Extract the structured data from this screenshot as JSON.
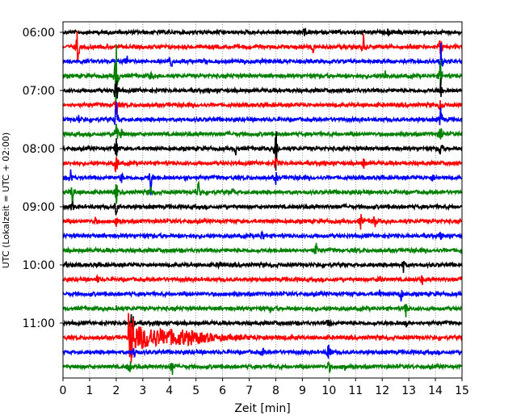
{
  "chart_data": {
    "type": "line",
    "title": "",
    "xlabel": "Zeit  [min]",
    "ylabel": "UTC (Lokalzeit = UTC + 02:00)",
    "xlim": [
      0,
      15
    ],
    "x_ticks": [
      "0",
      "1",
      "2",
      "3",
      "4",
      "5",
      "6",
      "7",
      "8",
      "9",
      "10",
      "11",
      "12",
      "13",
      "14",
      "15"
    ],
    "y_ticks": [
      "06:00",
      "07:00",
      "08:00",
      "09:00",
      "10:00",
      "11:00"
    ],
    "grid": "vertical dotted",
    "trace_interval_minutes": 15,
    "trace_colors": [
      "#000000",
      "#ff0000",
      "#0000ff",
      "#008000"
    ],
    "traces": [
      {
        "start": "06:00",
        "color": "#000000",
        "events": [
          {
            "t": 9.1,
            "amp": 5
          },
          {
            "t": 12.2,
            "amp": 4
          },
          {
            "t": 12.7,
            "amp": 3
          }
        ]
      },
      {
        "start": "06:15",
        "color": "#ff0000",
        "events": [
          {
            "t": 0.55,
            "amp": 32
          },
          {
            "t": 9.4,
            "amp": 9
          },
          {
            "t": 11.3,
            "amp": 16
          },
          {
            "t": 14.2,
            "amp": 22
          }
        ]
      },
      {
        "start": "06:30",
        "color": "#0000ff",
        "events": [
          {
            "t": 2.4,
            "amp": 8
          },
          {
            "t": 4.05,
            "amp": 16
          },
          {
            "t": 14.2,
            "amp": 30
          }
        ]
      },
      {
        "start": "06:45",
        "color": "#008000",
        "events": [
          {
            "t": 2.0,
            "amp": 62
          },
          {
            "t": 3.3,
            "amp": 5
          },
          {
            "t": 12.1,
            "amp": 10
          },
          {
            "t": 14.2,
            "amp": 22
          }
        ]
      },
      {
        "start": "07:00",
        "color": "#000000",
        "events": [
          {
            "t": 2.0,
            "amp": 30
          },
          {
            "t": 14.2,
            "amp": 18
          }
        ]
      },
      {
        "start": "07:15",
        "color": "#ff0000",
        "events": [
          {
            "t": 2.0,
            "amp": 26
          },
          {
            "t": 14.2,
            "amp": 16
          }
        ]
      },
      {
        "start": "07:30",
        "color": "#0000ff",
        "events": [
          {
            "t": 2.0,
            "amp": 28
          },
          {
            "t": 0.6,
            "amp": 5
          },
          {
            "t": 14.2,
            "amp": 18
          }
        ]
      },
      {
        "start": "07:45",
        "color": "#008000",
        "events": [
          {
            "t": 2.0,
            "amp": 26
          },
          {
            "t": 2.2,
            "amp": 8
          },
          {
            "t": 14.2,
            "amp": 18
          }
        ]
      },
      {
        "start": "08:00",
        "color": "#000000",
        "events": [
          {
            "t": 2.0,
            "amp": 22
          },
          {
            "t": 6.5,
            "amp": 7
          },
          {
            "t": 8.0,
            "amp": 36
          },
          {
            "t": 14.2,
            "amp": 16
          }
        ]
      },
      {
        "start": "08:15",
        "color": "#ff0000",
        "events": [
          {
            "t": 2.0,
            "amp": 22
          },
          {
            "t": 8.0,
            "amp": 14
          },
          {
            "t": 11.3,
            "amp": 8
          }
        ]
      },
      {
        "start": "08:30",
        "color": "#0000ff",
        "events": [
          {
            "t": 0.3,
            "amp": 14
          },
          {
            "t": 2.2,
            "amp": 8
          },
          {
            "t": 3.3,
            "amp": 24
          },
          {
            "t": 4.6,
            "amp": 5
          },
          {
            "t": 8.0,
            "amp": 8
          },
          {
            "t": 13.9,
            "amp": 5
          }
        ]
      },
      {
        "start": "08:45",
        "color": "#008000",
        "events": [
          {
            "t": 0.35,
            "amp": 18
          },
          {
            "t": 2.0,
            "amp": 18
          },
          {
            "t": 3.3,
            "amp": 8
          },
          {
            "t": 5.1,
            "amp": 18
          },
          {
            "t": 6.4,
            "amp": 5
          }
        ]
      },
      {
        "start": "09:00",
        "color": "#000000",
        "events": [
          {
            "t": 0.35,
            "amp": 8
          },
          {
            "t": 2.0,
            "amp": 12
          }
        ]
      },
      {
        "start": "09:15",
        "color": "#ff0000",
        "events": [
          {
            "t": 1.2,
            "amp": 6
          },
          {
            "t": 2.0,
            "amp": 12
          },
          {
            "t": 11.2,
            "amp": 12
          },
          {
            "t": 11.7,
            "amp": 14
          }
        ]
      },
      {
        "start": "09:30",
        "color": "#0000ff",
        "events": [
          {
            "t": 7.5,
            "amp": 8
          },
          {
            "t": 14.2,
            "amp": 6
          }
        ]
      },
      {
        "start": "09:45",
        "color": "#008000",
        "events": [
          {
            "t": 9.5,
            "amp": 12
          },
          {
            "t": 15.0,
            "amp": 4
          }
        ]
      },
      {
        "start": "10:00",
        "color": "#000000",
        "events": [
          {
            "t": 0.1,
            "amp": 4
          },
          {
            "t": 5.9,
            "amp": 8
          },
          {
            "t": 12.8,
            "amp": 8
          }
        ]
      },
      {
        "start": "10:15",
        "color": "#ff0000",
        "events": [
          {
            "t": 1.3,
            "amp": 5
          },
          {
            "t": 11.9,
            "amp": 8
          },
          {
            "t": 13.5,
            "amp": 7
          }
        ]
      },
      {
        "start": "10:30",
        "color": "#0000ff",
        "events": [
          {
            "t": 12.7,
            "amp": 12
          },
          {
            "t": 11.9,
            "amp": 5
          }
        ]
      },
      {
        "start": "10:45",
        "color": "#008000",
        "events": [
          {
            "t": 2.0,
            "amp": 4
          },
          {
            "t": 7.8,
            "amp": 4
          },
          {
            "t": 12.9,
            "amp": 12
          }
        ]
      },
      {
        "start": "11:00",
        "color": "#000000",
        "events": [
          {
            "t": 2.6,
            "amp": 24
          },
          {
            "t": 10.0,
            "amp": 10
          },
          {
            "t": 12.9,
            "amp": 6
          }
        ]
      },
      {
        "start": "11:15",
        "color": "#ff0000",
        "events": [
          {
            "t": 2.5,
            "amp": 30,
            "coda": 7
          }
        ]
      },
      {
        "start": "11:30",
        "color": "#0000ff",
        "events": [
          {
            "t": 2.7,
            "amp": 12
          },
          {
            "t": 7.5,
            "amp": 5
          },
          {
            "t": 10.0,
            "amp": 26
          }
        ]
      },
      {
        "start": "11:45",
        "color": "#008000",
        "events": [
          {
            "t": 2.5,
            "amp": 14
          },
          {
            "t": 4.1,
            "amp": 14
          },
          {
            "t": 10.0,
            "amp": 10
          },
          {
            "t": 10.6,
            "amp": 8
          }
        ]
      }
    ]
  }
}
